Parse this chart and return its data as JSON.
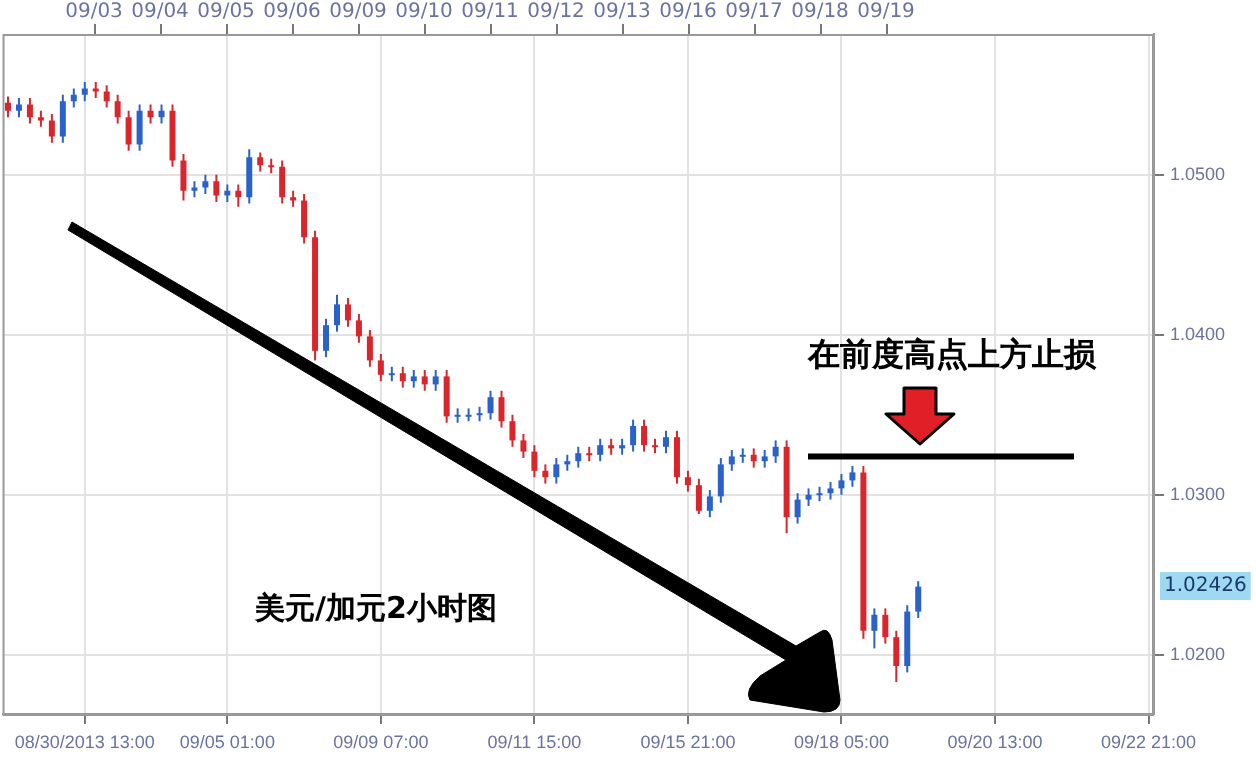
{
  "chart_data": {
    "type": "candlestick",
    "annotations": [
      "美元/加元2小时图",
      "1.02426",
      "09/03",
      "09/04",
      "09/05",
      "09/06",
      "09/09",
      "09/10",
      "09/11",
      "09/12",
      "09/13",
      "09/16",
      "09/17",
      "09/18",
      "09/19"
    ],
    "ref_lines": [
      {
        "axis": "y",
        "value": 1.0324,
        "label": "在前度高点上方止损",
        "color": "#000000"
      }
    ],
    "categories": [
      null,
      null,
      null,
      null,
      null,
      null,
      null,
      "08/30/2013 13:00",
      null,
      null,
      null,
      null,
      null,
      null,
      null,
      null,
      null,
      null,
      null,
      null,
      "09/05 01:00",
      null,
      null,
      null,
      null,
      null,
      null,
      null,
      null,
      null,
      null,
      null,
      null,
      null,
      "09/09 07:00",
      null,
      null,
      null,
      null,
      null,
      null,
      null,
      null,
      null,
      null,
      null,
      null,
      null,
      "09/11 15:00",
      null,
      null,
      null,
      null,
      null,
      null,
      null,
      null,
      null,
      null,
      null,
      null,
      null,
      "09/15 21:00",
      null,
      null,
      null,
      null,
      null,
      null,
      null,
      null,
      null,
      null,
      null,
      null,
      null,
      "09/18 05:00",
      null,
      null,
      null,
      null,
      null,
      null,
      null,
      null,
      null,
      null,
      null,
      null,
      null,
      "09/20 13:00",
      null,
      null,
      null,
      null,
      null,
      null,
      null,
      null,
      null,
      null,
      null,
      null,
      null,
      "09/22 21:00"
    ],
    "ylim": [
      1.0163,
      1.0588
    ],
    "yticks": [
      {
        "value": 1.02,
        "label": "1.0200"
      },
      {
        "value": 1.03,
        "label": "1.0300"
      },
      {
        "value": 1.04,
        "label": "1.0400"
      },
      {
        "value": 1.05,
        "label": "1.0500"
      }
    ],
    "grid": true,
    "ohlc": [
      [
        1.0545,
        1.0549,
        1.0536,
        1.054
      ],
      [
        1.054,
        1.0548,
        1.0536,
        1.0544
      ],
      [
        1.0544,
        1.0548,
        1.0532,
        1.0536
      ],
      [
        1.0536,
        1.054,
        1.053,
        1.0534
      ],
      [
        1.0534,
        1.0538,
        1.052,
        1.0524
      ],
      [
        1.0524,
        1.055,
        1.052,
        1.0546
      ],
      [
        1.0546,
        1.0554,
        1.0542,
        1.055
      ],
      [
        1.055,
        1.0558,
        1.0546,
        1.0554
      ],
      [
        1.0554,
        1.0558,
        1.0548,
        1.0552
      ],
      [
        1.0552,
        1.0556,
        1.0542,
        1.0546
      ],
      [
        1.0546,
        1.055,
        1.0532,
        1.0536
      ],
      [
        1.0536,
        1.054,
        1.0515,
        1.0519
      ],
      [
        1.0519,
        1.0544,
        1.0515,
        1.054
      ],
      [
        1.054,
        1.0544,
        1.0532,
        1.0536
      ],
      [
        1.0536,
        1.0544,
        1.0532,
        1.054
      ],
      [
        1.054,
        1.0544,
        1.0505,
        1.0509
      ],
      [
        1.0509,
        1.0513,
        1.0484,
        1.049
      ],
      [
        1.049,
        1.0496,
        1.0486,
        1.0492
      ],
      [
        1.0492,
        1.05,
        1.0488,
        1.0496
      ],
      [
        1.0496,
        1.05,
        1.0483,
        1.0487
      ],
      [
        1.0487,
        1.0494,
        1.0483,
        1.049
      ],
      [
        1.049,
        1.0494,
        1.048,
        1.0486
      ],
      [
        1.0486,
        1.0516,
        1.0482,
        1.0511
      ],
      [
        1.0511,
        1.0514,
        1.0502,
        1.0506
      ],
      [
        1.0506,
        1.051,
        1.0501,
        1.0505
      ],
      [
        1.0505,
        1.0509,
        1.0482,
        1.0486
      ],
      [
        1.0486,
        1.049,
        1.048,
        1.0484
      ],
      [
        1.0484,
        1.0488,
        1.0457,
        1.0461
      ],
      [
        1.0461,
        1.0465,
        1.0384,
        1.039
      ],
      [
        1.039,
        1.041,
        1.0386,
        1.0406
      ],
      [
        1.0406,
        1.0425,
        1.0402,
        1.0419
      ],
      [
        1.0419,
        1.0423,
        1.0405,
        1.0409
      ],
      [
        1.0409,
        1.0413,
        1.0395,
        1.0399
      ],
      [
        1.0399,
        1.0403,
        1.038,
        1.0384
      ],
      [
        1.0384,
        1.0388,
        1.0371,
        1.0375
      ],
      [
        1.0375,
        1.038,
        1.0371,
        1.0376
      ],
      [
        1.0376,
        1.038,
        1.0367,
        1.0371
      ],
      [
        1.0371,
        1.0378,
        1.0367,
        1.0374
      ],
      [
        1.0374,
        1.0378,
        1.0365,
        1.0369
      ],
      [
        1.0369,
        1.0378,
        1.0365,
        1.0374
      ],
      [
        1.0374,
        1.0378,
        1.0345,
        1.0349
      ],
      [
        1.0349,
        1.0354,
        1.0345,
        1.035
      ],
      [
        1.035,
        1.0354,
        1.0346,
        1.035
      ],
      [
        1.035,
        1.0355,
        1.0346,
        1.0351
      ],
      [
        1.0351,
        1.0365,
        1.0347,
        1.0361
      ],
      [
        1.0361,
        1.0365,
        1.0342,
        1.0346
      ],
      [
        1.0346,
        1.035,
        1.033,
        1.0334
      ],
      [
        1.0334,
        1.0338,
        1.0323,
        1.0327
      ],
      [
        1.0327,
        1.0331,
        1.0311,
        1.0315
      ],
      [
        1.0315,
        1.0319,
        1.0307,
        1.0311
      ],
      [
        1.0311,
        1.0323,
        1.0307,
        1.0319
      ],
      [
        1.0319,
        1.0325,
        1.0315,
        1.0321
      ],
      [
        1.0321,
        1.033,
        1.0317,
        1.0326
      ],
      [
        1.0326,
        1.033,
        1.0321,
        1.0325
      ],
      [
        1.0325,
        1.0335,
        1.0321,
        1.0331
      ],
      [
        1.0331,
        1.0335,
        1.0325,
        1.0329
      ],
      [
        1.0329,
        1.0335,
        1.0325,
        1.0331
      ],
      [
        1.0331,
        1.0347,
        1.0327,
        1.0343
      ],
      [
        1.0343,
        1.0347,
        1.0327,
        1.0331
      ],
      [
        1.0331,
        1.0335,
        1.0326,
        1.033
      ],
      [
        1.033,
        1.034,
        1.0326,
        1.0336
      ],
      [
        1.0336,
        1.034,
        1.0307,
        1.0311
      ],
      [
        1.0311,
        1.0315,
        1.0302,
        1.0306
      ],
      [
        1.0306,
        1.031,
        1.0288,
        1.029
      ],
      [
        1.029,
        1.0303,
        1.0286,
        1.0299
      ],
      [
        1.0299,
        1.0323,
        1.0295,
        1.0319
      ],
      [
        1.0319,
        1.0328,
        1.0315,
        1.0324
      ],
      [
        1.0324,
        1.0329,
        1.032,
        1.0325
      ],
      [
        1.0325,
        1.0329,
        1.0317,
        1.0321
      ],
      [
        1.0321,
        1.0328,
        1.0317,
        1.0324
      ],
      [
        1.0324,
        1.0334,
        1.032,
        1.033
      ],
      [
        1.033,
        1.0334,
        1.0276,
        1.0286
      ],
      [
        1.0286,
        1.0301,
        1.0282,
        1.0297
      ],
      [
        1.0297,
        1.0304,
        1.0293,
        1.03
      ],
      [
        1.03,
        1.0305,
        1.0296,
        1.0301
      ],
      [
        1.0301,
        1.0308,
        1.0297,
        1.0304
      ],
      [
        1.0304,
        1.0313,
        1.03,
        1.0309
      ],
      [
        1.0309,
        1.0318,
        1.0305,
        1.0314
      ],
      [
        1.0314,
        1.0318,
        1.021,
        1.0215
      ],
      [
        1.0215,
        1.0229,
        1.0204,
        1.0225
      ],
      [
        1.0225,
        1.0229,
        1.0207,
        1.0211
      ],
      [
        1.0211,
        1.0215,
        1.0183,
        1.0193
      ],
      [
        1.0193,
        1.0231,
        1.0189,
        1.0227
      ],
      [
        1.0227,
        1.0246,
        1.0223,
        1.02426
      ],
      null,
      null,
      null,
      null,
      null,
      null,
      null,
      null,
      null,
      null,
      null,
      null,
      null,
      null,
      null,
      null,
      null,
      null,
      null,
      null,
      null
    ],
    "colors": [
      "#d9262c",
      "#2a62c9",
      "#d9262c",
      "#d9262c",
      "#d9262c",
      "#2a62c9",
      "#2a62c9",
      "#2a62c9",
      "#d9262c",
      "#d9262c",
      "#d9262c",
      "#d9262c",
      "#2a62c9",
      "#d9262c",
      "#2a62c9",
      "#d9262c",
      "#d9262c",
      "#2a62c9",
      "#2a62c9",
      "#d9262c",
      "#2a62c9",
      "#d9262c",
      "#2a62c9",
      "#d9262c",
      "#d9262c",
      "#d9262c",
      "#d9262c",
      "#d9262c",
      "#d9262c",
      "#2a62c9",
      "#2a62c9",
      "#d9262c",
      "#d9262c",
      "#d9262c",
      "#d9262c",
      "#2a62c9",
      "#d9262c",
      "#2a62c9",
      "#d9262c",
      "#2a62c9",
      "#d9262c",
      "#2a62c9",
      "#2a62c9",
      "#2a62c9",
      "#2a62c9",
      "#d9262c",
      "#d9262c",
      "#d9262c",
      "#d9262c",
      "#d9262c",
      "#2a62c9",
      "#2a62c9",
      "#2a62c9",
      "#d9262c",
      "#2a62c9",
      "#d9262c",
      "#2a62c9",
      "#2a62c9",
      "#d9262c",
      "#d9262c",
      "#2a62c9",
      "#d9262c",
      "#d9262c",
      "#d9262c",
      "#2a62c9",
      "#2a62c9",
      "#2a62c9",
      "#2a62c9",
      "#d9262c",
      "#2a62c9",
      "#2a62c9",
      "#d9262c",
      "#2a62c9",
      "#2a62c9",
      "#2a62c9",
      "#2a62c9",
      "#2a62c9",
      "#2a62c9",
      "#d9262c",
      "#2a62c9",
      "#d9262c",
      "#d9262c",
      "#2a62c9",
      "#2a62c9",
      null,
      null,
      null,
      null,
      null,
      null,
      null,
      null,
      null,
      null,
      null,
      null,
      null,
      null,
      null,
      null,
      null,
      null,
      null,
      null,
      null
    ]
  }
}
